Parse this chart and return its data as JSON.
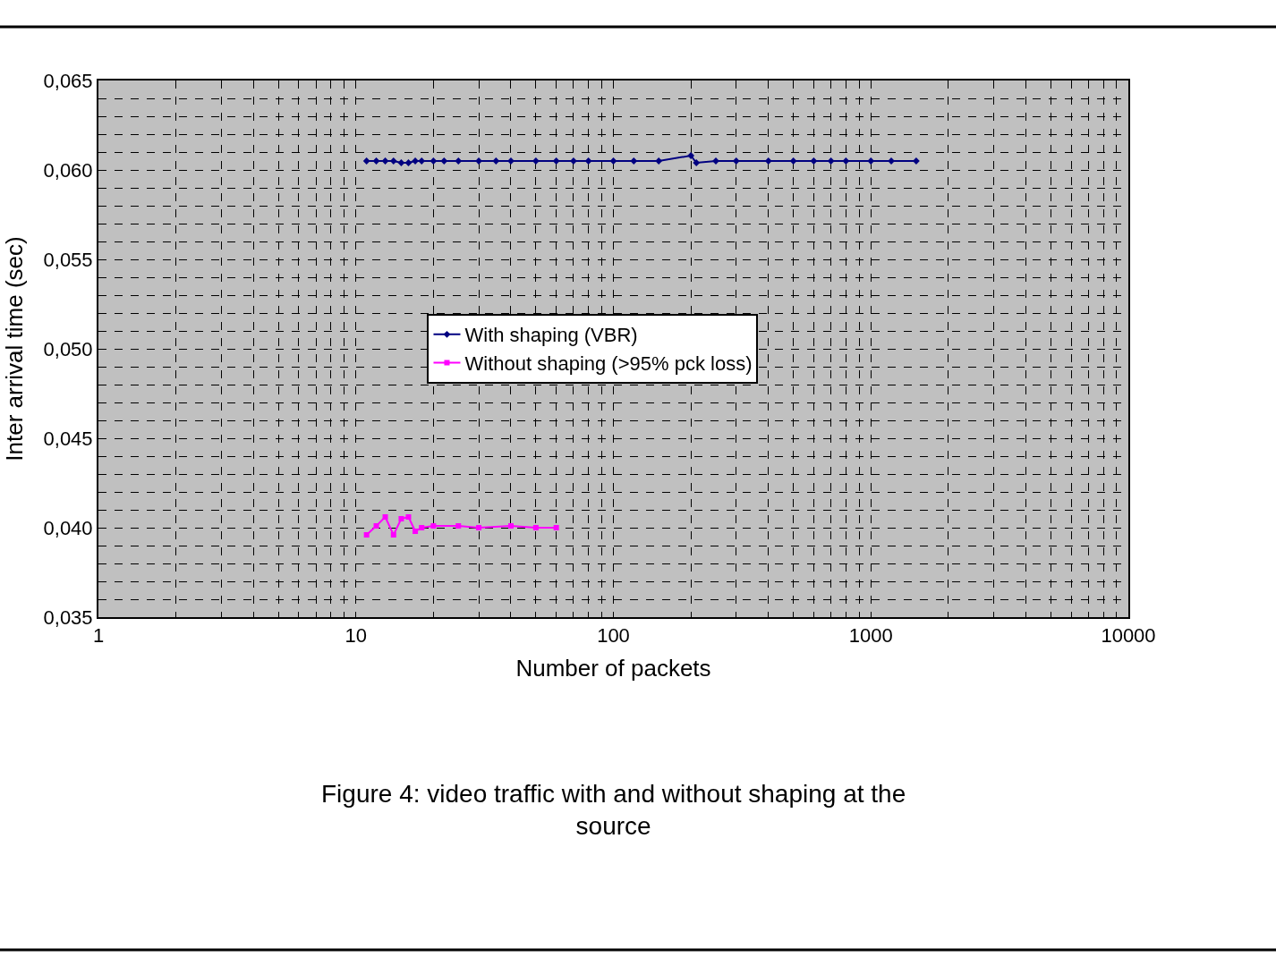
{
  "chart_data": {
    "type": "line",
    "title": "Figure 4: video traffic with and without shaping at the source",
    "xlabel": "Number of packets",
    "ylabel": "Inter arrival time (sec)",
    "log": "x",
    "xlim": [
      1,
      10000
    ],
    "xticks": [
      1,
      10,
      100,
      1000,
      10000
    ],
    "ylim": [
      0.035,
      0.065
    ],
    "yticks": [
      {
        "value": 0.035,
        "label": "0,035"
      },
      {
        "value": 0.04,
        "label": "0,040"
      },
      {
        "value": 0.045,
        "label": "0,045"
      },
      {
        "value": 0.05,
        "label": "0,050"
      },
      {
        "value": 0.055,
        "label": "0,055"
      },
      {
        "value": 0.06,
        "label": "0,060"
      },
      {
        "value": 0.065,
        "label": "0,065"
      }
    ],
    "grid": true,
    "legend": "center",
    "series": [
      {
        "name": "With shaping (VBR)",
        "color": "#000080",
        "marker": "diamond",
        "x": [
          11,
          12,
          13,
          14,
          15,
          16,
          17,
          18,
          20,
          22,
          25,
          30,
          35,
          40,
          50,
          60,
          70,
          80,
          100,
          120,
          150,
          200,
          210,
          250,
          300,
          400,
          500,
          600,
          700,
          800,
          1000,
          1200,
          1500
        ],
        "values": [
          0.0605,
          0.0605,
          0.0605,
          0.0605,
          0.0604,
          0.0604,
          0.0605,
          0.0605,
          0.0605,
          0.0605,
          0.0605,
          0.0605,
          0.0605,
          0.0605,
          0.0605,
          0.0605,
          0.0605,
          0.0605,
          0.0605,
          0.0605,
          0.0605,
          0.0608,
          0.0604,
          0.0605,
          0.0605,
          0.0605,
          0.0605,
          0.0605,
          0.0605,
          0.0605,
          0.0605,
          0.0605,
          0.0605
        ]
      },
      {
        "name": "Without shaping (>95% pck loss)",
        "color": "#ff00ff",
        "marker": "square",
        "x": [
          11,
          12,
          13,
          14,
          15,
          16,
          17,
          18,
          20,
          25,
          30,
          40,
          50,
          60
        ],
        "values": [
          0.0396,
          0.0401,
          0.0406,
          0.0396,
          0.0405,
          0.0406,
          0.0398,
          0.04,
          0.0401,
          0.0401,
          0.04,
          0.0401,
          0.04,
          0.04
        ]
      }
    ]
  }
}
